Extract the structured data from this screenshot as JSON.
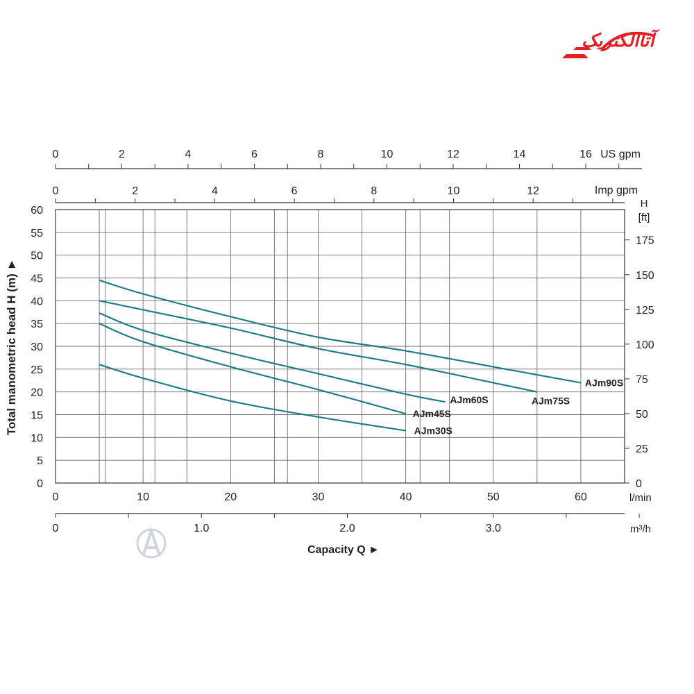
{
  "brand": {
    "logo_text": "آتاالکتریک",
    "color": "#e31e24"
  },
  "chart_data": {
    "type": "line",
    "title": "",
    "ylabel": "Total manometric head H (m)",
    "xlabel": "Capacity Q",
    "x_unit": "l/min",
    "ylim": [
      0,
      60
    ],
    "xlim": [
      0,
      65
    ],
    "y_ticks": [
      0,
      5,
      10,
      15,
      20,
      25,
      30,
      35,
      40,
      45,
      50,
      55,
      60
    ],
    "x_ticks": [
      0,
      10,
      20,
      30,
      40,
      50,
      60
    ],
    "grid": true,
    "line_color": "#1f7d8a",
    "right_axis": {
      "unit_top": "H",
      "unit": "[ft]",
      "ticks": [
        0,
        25,
        50,
        75,
        100,
        125,
        150,
        175
      ]
    },
    "top_axis_us": {
      "label": "US gpm",
      "ticks": [
        0,
        2,
        4,
        6,
        8,
        10,
        12,
        14,
        16
      ]
    },
    "top_axis_imp": {
      "label": "Imp gpm",
      "ticks": [
        0,
        2,
        4,
        6,
        8,
        10,
        12
      ]
    },
    "bottom_axis_m3h": {
      "unit": "m³/h",
      "labels": [
        "0",
        "1.0",
        "2.0",
        "3.0"
      ],
      "values": [
        0,
        1,
        2,
        3
      ]
    },
    "series": [
      {
        "name": "AJm90S",
        "x": [
          5,
          10,
          20,
          30,
          40,
          50,
          60
        ],
        "y": [
          44.5,
          41.5,
          36.5,
          32,
          29,
          25.5,
          22
        ]
      },
      {
        "name": "AJm75S",
        "x": [
          5,
          10,
          20,
          30,
          40,
          50,
          55
        ],
        "y": [
          40,
          38,
          34,
          29.5,
          26,
          22,
          20
        ]
      },
      {
        "name": "AJm60S",
        "x": [
          5,
          10,
          20,
          30,
          40,
          44.5
        ],
        "y": [
          37.3,
          33.5,
          28.5,
          24,
          19.5,
          17.8
        ]
      },
      {
        "name": "AJm45S",
        "x": [
          5,
          10,
          20,
          30,
          40
        ],
        "y": [
          35,
          31,
          25.5,
          20.5,
          15.2
        ]
      },
      {
        "name": "AJm30S",
        "x": [
          5,
          10,
          20,
          30,
          40
        ],
        "y": [
          26,
          23,
          18,
          14.5,
          11.5
        ]
      }
    ]
  }
}
